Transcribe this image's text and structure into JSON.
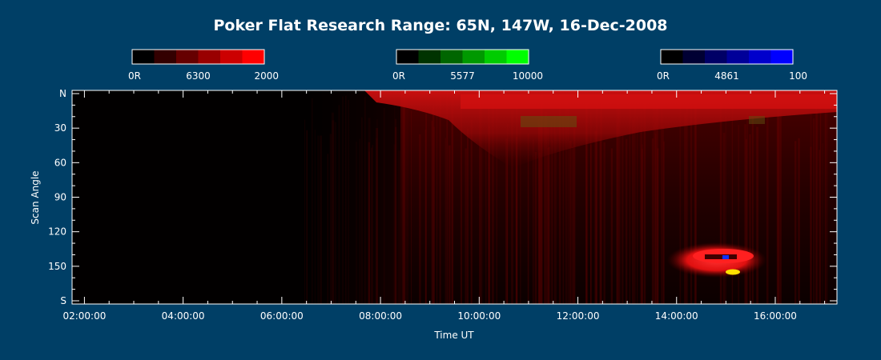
{
  "chart_data": {
    "type": "heatmap",
    "title": "Poker Flat Research Range: 65N, 147W, 16-Dec-2008",
    "xlabel": "Time UT",
    "ylabel": "Scan Angle",
    "x_ticks": [
      "02:00:00",
      "04:00:00",
      "06:00:00",
      "08:00:00",
      "10:00:00",
      "12:00:00",
      "14:00:00",
      "16:00:00"
    ],
    "y_ticks": [
      "N",
      "30",
      "60",
      "90",
      "120",
      "150",
      "S"
    ],
    "colorbars": [
      {
        "wavelength": "6300",
        "min_label": "0R",
        "max_label": "2000",
        "colors": [
          "#000000",
          "#330000",
          "#660000",
          "#990000",
          "#cc0000",
          "#ff0000"
        ]
      },
      {
        "wavelength": "5577",
        "min_label": "0R",
        "max_label": "10000",
        "colors": [
          "#000000",
          "#003300",
          "#006600",
          "#009900",
          "#00cc00",
          "#00ff00"
        ]
      },
      {
        "wavelength": "4861",
        "min_label": "0R",
        "max_label": "100",
        "colors": [
          "#000000",
          "#000033",
          "#000066",
          "#000099",
          "#0000cc",
          "#0000ff"
        ]
      }
    ]
  }
}
